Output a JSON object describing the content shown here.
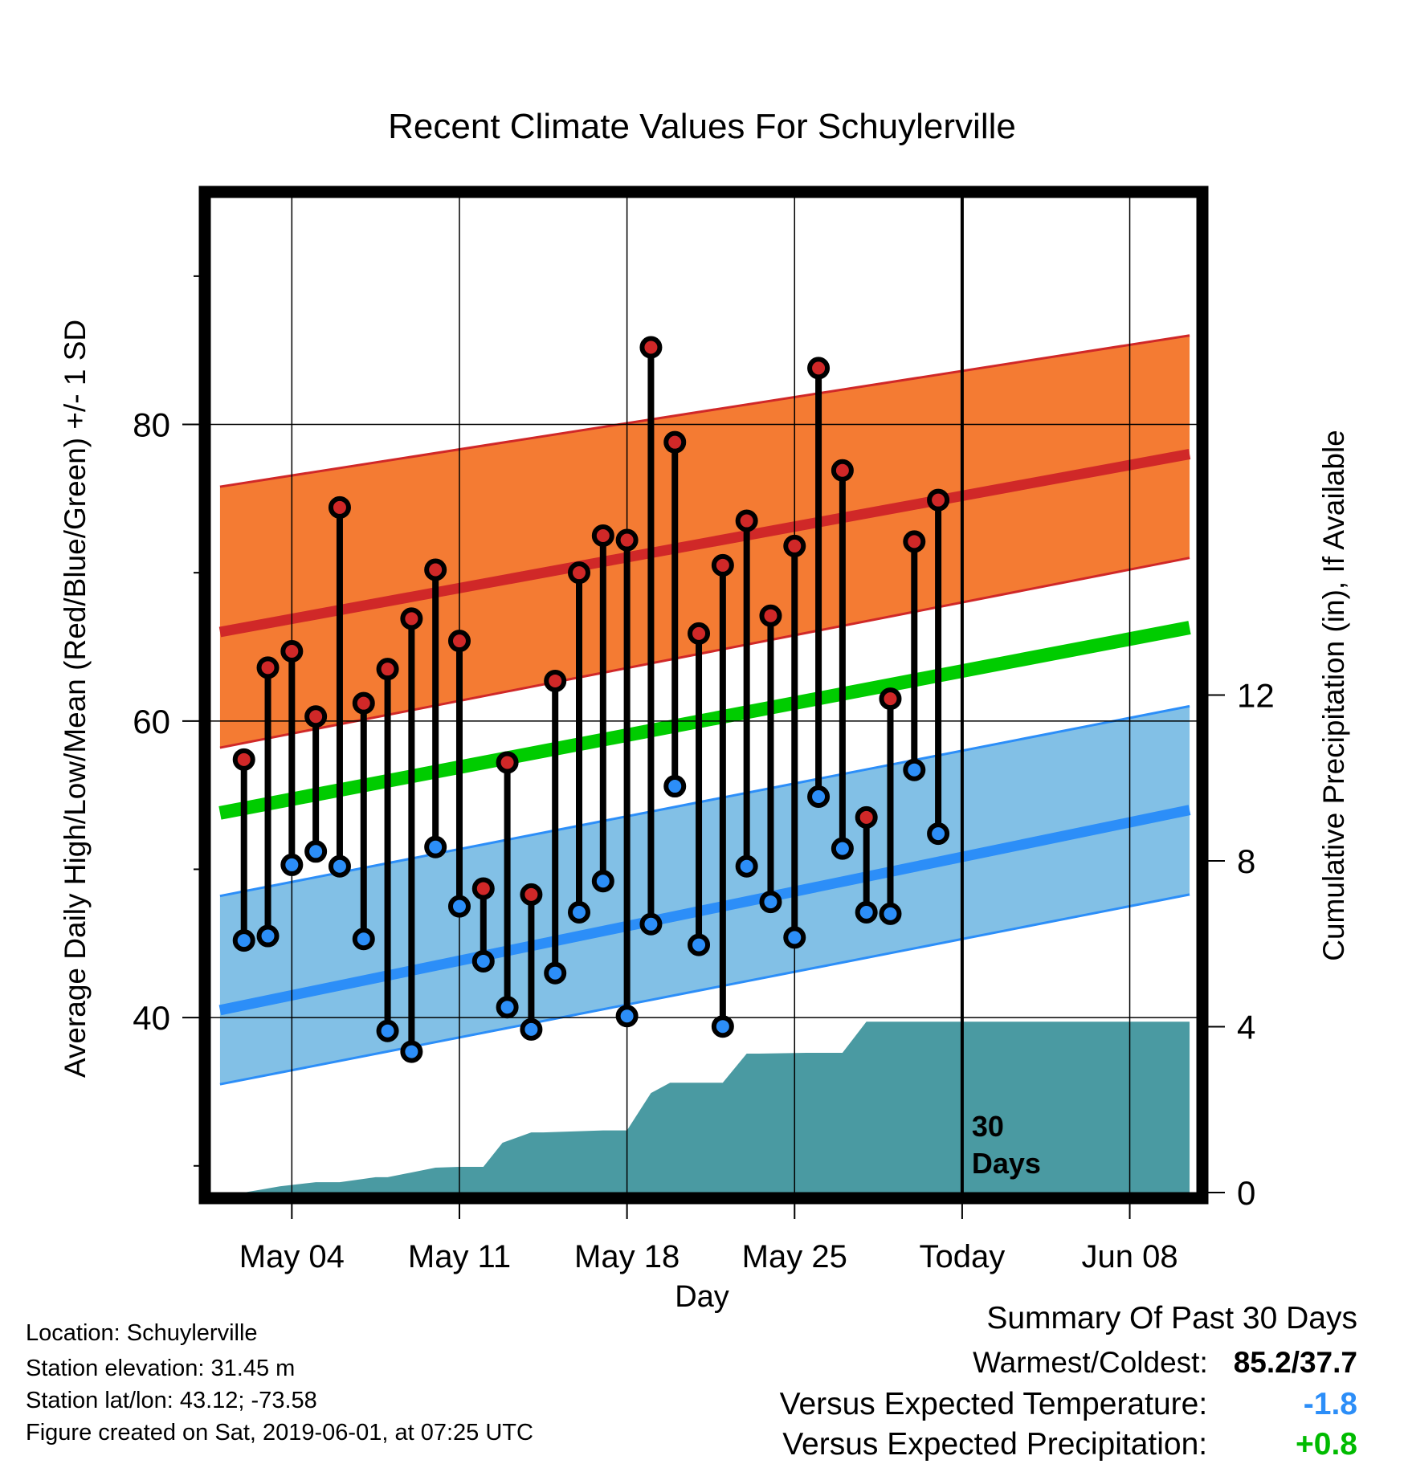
{
  "chart_data": {
    "type": "line",
    "title": "Recent Climate Values For Schuylerville",
    "xlabel": "Day",
    "ylabel_left": "Average Daily High/Low/Mean (Red/Blue/Green) +/- 1 SD",
    "ylabel_right": "Cumulative Precipitation (in), If Available",
    "x_ticks": [
      {
        "day": 4,
        "label": "May 04"
      },
      {
        "day": 11,
        "label": "May 11"
      },
      {
        "day": 18,
        "label": "May 18"
      },
      {
        "day": 25,
        "label": "May 25"
      },
      {
        "day": 32,
        "label": "Today"
      },
      {
        "day": 39,
        "label": "Jun 08"
      }
    ],
    "x_range_day_of_may": [
      0.6,
      41.8
    ],
    "y_left_ticks": [
      40,
      60,
      80
    ],
    "y_left_range": [
      28.2,
      95.3
    ],
    "y_right_ticks": [
      0,
      4,
      8,
      12
    ],
    "y_right_range": [
      0,
      24.0
    ],
    "grid": true,
    "today_marker": {
      "day": 32,
      "label_line1": "30",
      "label_line2": "Days"
    },
    "normal_high": {
      "days": [
        1,
        41.5
      ],
      "mean": [
        66.0,
        78.0
      ],
      "upper": [
        75.8,
        86.0
      ],
      "lower": [
        58.2,
        71.0
      ]
    },
    "normal_low": {
      "days": [
        1,
        41.5
      ],
      "mean": [
        40.5,
        54.0
      ],
      "upper": [
        48.2,
        61.0
      ],
      "lower": [
        35.5,
        48.3
      ]
    },
    "normal_mean": {
      "days": [
        1,
        41.5
      ],
      "values": [
        53.8,
        66.3
      ]
    },
    "observed": {
      "days": [
        2,
        3,
        4,
        5,
        6,
        7,
        8,
        9,
        10,
        11,
        12,
        13,
        14,
        15,
        16,
        17,
        18,
        19,
        20,
        21,
        22,
        23,
        24,
        25,
        26,
        27,
        28,
        29,
        30,
        31
      ],
      "highs": [
        57.4,
        63.6,
        64.7,
        60.3,
        74.4,
        61.2,
        63.5,
        66.9,
        70.2,
        65.4,
        48.7,
        57.2,
        48.3,
        62.7,
        70.0,
        72.5,
        72.2,
        85.2,
        78.8,
        65.9,
        70.5,
        73.5,
        67.1,
        71.8,
        83.8,
        76.9,
        53.5,
        61.5,
        72.1,
        74.9
      ],
      "lows": [
        45.2,
        45.5,
        50.3,
        51.2,
        50.2,
        45.3,
        39.1,
        37.7,
        51.5,
        47.5,
        43.8,
        40.7,
        39.2,
        43.0,
        47.1,
        49.2,
        40.1,
        46.3,
        55.6,
        44.9,
        39.4,
        50.2,
        47.8,
        45.4,
        54.9,
        51.4,
        47.1,
        47.0,
        56.7,
        52.4
      ]
    },
    "cumulative_precip": {
      "days": [
        1.0,
        2.0,
        3.5,
        5.0,
        6.0,
        7.5,
        8.0,
        10.0,
        11.0,
        12.0,
        12.8,
        14.0,
        14.5,
        17.0,
        18.0,
        19.0,
        19.8,
        21.0,
        22.0,
        23.0,
        23.5,
        25.5,
        26.0,
        27.0,
        28.0,
        28.5,
        32.0,
        41.5
      ],
      "inches": [
        0.0,
        0.0,
        0.15,
        0.25,
        0.25,
        0.37,
        0.37,
        0.6,
        0.62,
        0.62,
        1.2,
        1.45,
        1.45,
        1.5,
        1.5,
        2.4,
        2.65,
        2.65,
        2.65,
        3.35,
        3.35,
        3.37,
        3.37,
        3.37,
        4.12,
        4.12,
        4.12,
        4.12
      ]
    },
    "colors": {
      "high_band": "#f47b33",
      "high_line": "#d02828",
      "high_edge": "#d02828",
      "low_band": "#82c0e6",
      "low_line": "#2c8ef8",
      "low_edge": "#2c8ef8",
      "mean_line": "#00cc00",
      "precip_fill": "#4a9aa2",
      "high_dot": "#d02828",
      "low_dot": "#2c8ef8"
    }
  },
  "footer": {
    "location": "Location: Schuylerville",
    "elevation": "Station elevation: 31.45 m",
    "latlon": "Station lat/lon: 43.12; -73.58",
    "created": "Figure created on Sat, 2019-06-01, at 07:25 UTC"
  },
  "summary": {
    "title": "Summary Of Past 30 Days",
    "warmest_label": "Warmest/Coldest:",
    "warmest_value": "85.2/37.7",
    "temp_label": "Versus Expected Temperature:",
    "temp_value": "-1.8",
    "temp_color": "#2c8ef8",
    "precip_label": "Versus Expected Precipitation:",
    "precip_value": "+0.8",
    "precip_color": "#00bb00"
  }
}
